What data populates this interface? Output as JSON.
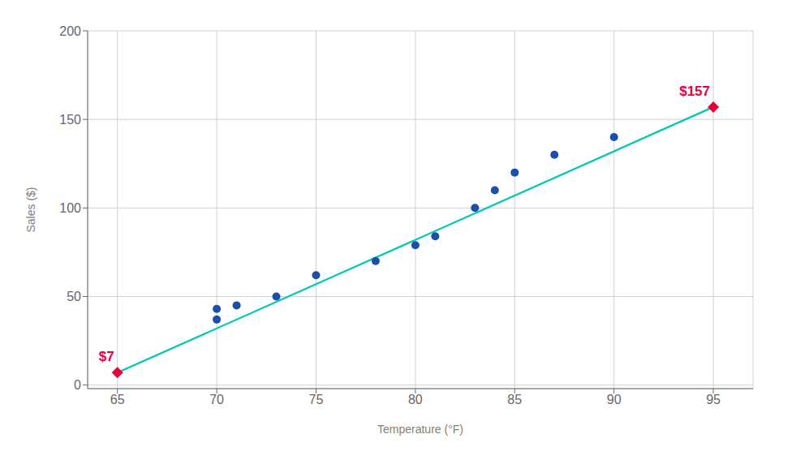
{
  "chart_data": {
    "type": "scatter",
    "xlabel": "Temperature (°F)",
    "ylabel": "Sales ($)",
    "xlim": [
      63.5,
      97
    ],
    "ylim": [
      -2,
      200
    ],
    "xticks": [
      65,
      70,
      75,
      80,
      85,
      90,
      95
    ],
    "yticks": [
      0,
      50,
      100,
      150,
      200
    ],
    "grid": true,
    "series": [
      {
        "type": "line",
        "color": "#00c8b0",
        "x": [
          65,
          95
        ],
        "values": [
          7,
          157
        ]
      },
      {
        "type": "scatter",
        "marker": "circle",
        "color": "#1b4faa",
        "x": [
          70,
          70,
          71,
          73,
          75,
          78,
          80,
          81,
          83,
          84,
          85,
          87,
          90
        ],
        "values": [
          37,
          43,
          45,
          50,
          62,
          70,
          79,
          84,
          100,
          110,
          120,
          130,
          140
        ]
      },
      {
        "type": "scatter",
        "marker": "diamond",
        "color": "#e8003d",
        "x": [
          65,
          95
        ],
        "values": [
          7,
          157
        ],
        "value_labels": [
          "$7",
          "$157"
        ],
        "data_labels": true
      }
    ]
  }
}
